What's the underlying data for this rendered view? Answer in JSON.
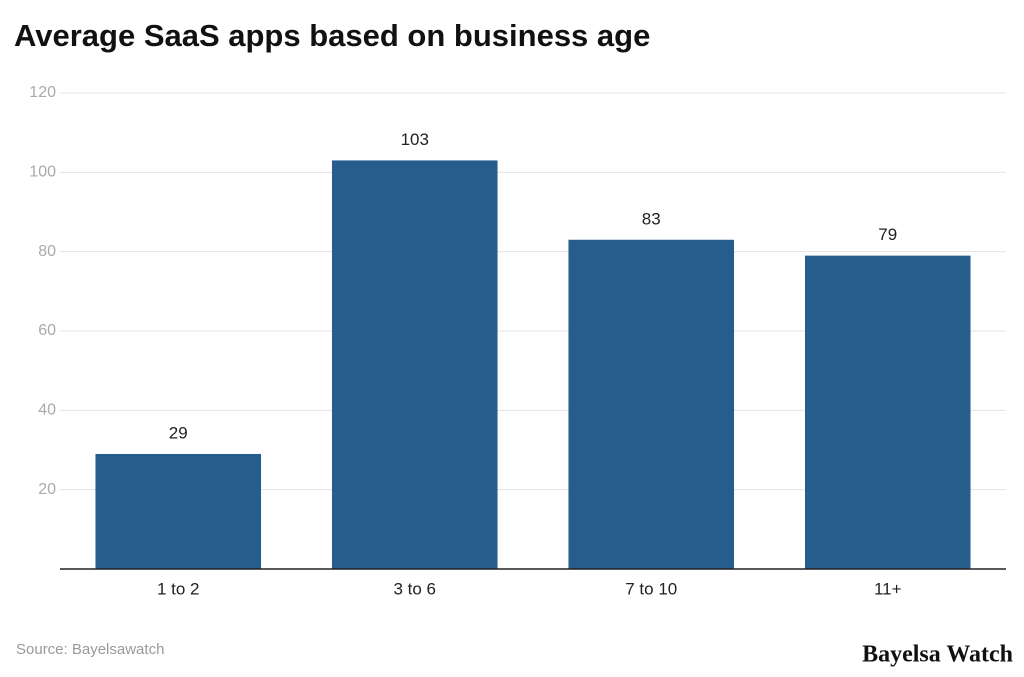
{
  "chart_data": {
    "type": "bar",
    "title": "Average SaaS apps based on business age",
    "categories": [
      "1 to 2",
      "3 to 6",
      "7 to 10",
      "11+"
    ],
    "values": [
      29,
      103,
      83,
      79
    ],
    "color": "#275d8c",
    "ylim": [
      0,
      120
    ],
    "yticks": [
      20,
      40,
      60,
      80,
      100,
      120
    ],
    "grid": true
  },
  "footer": {
    "source": "Source: Bayelsawatch",
    "brand": "Bayelsa Watch"
  }
}
